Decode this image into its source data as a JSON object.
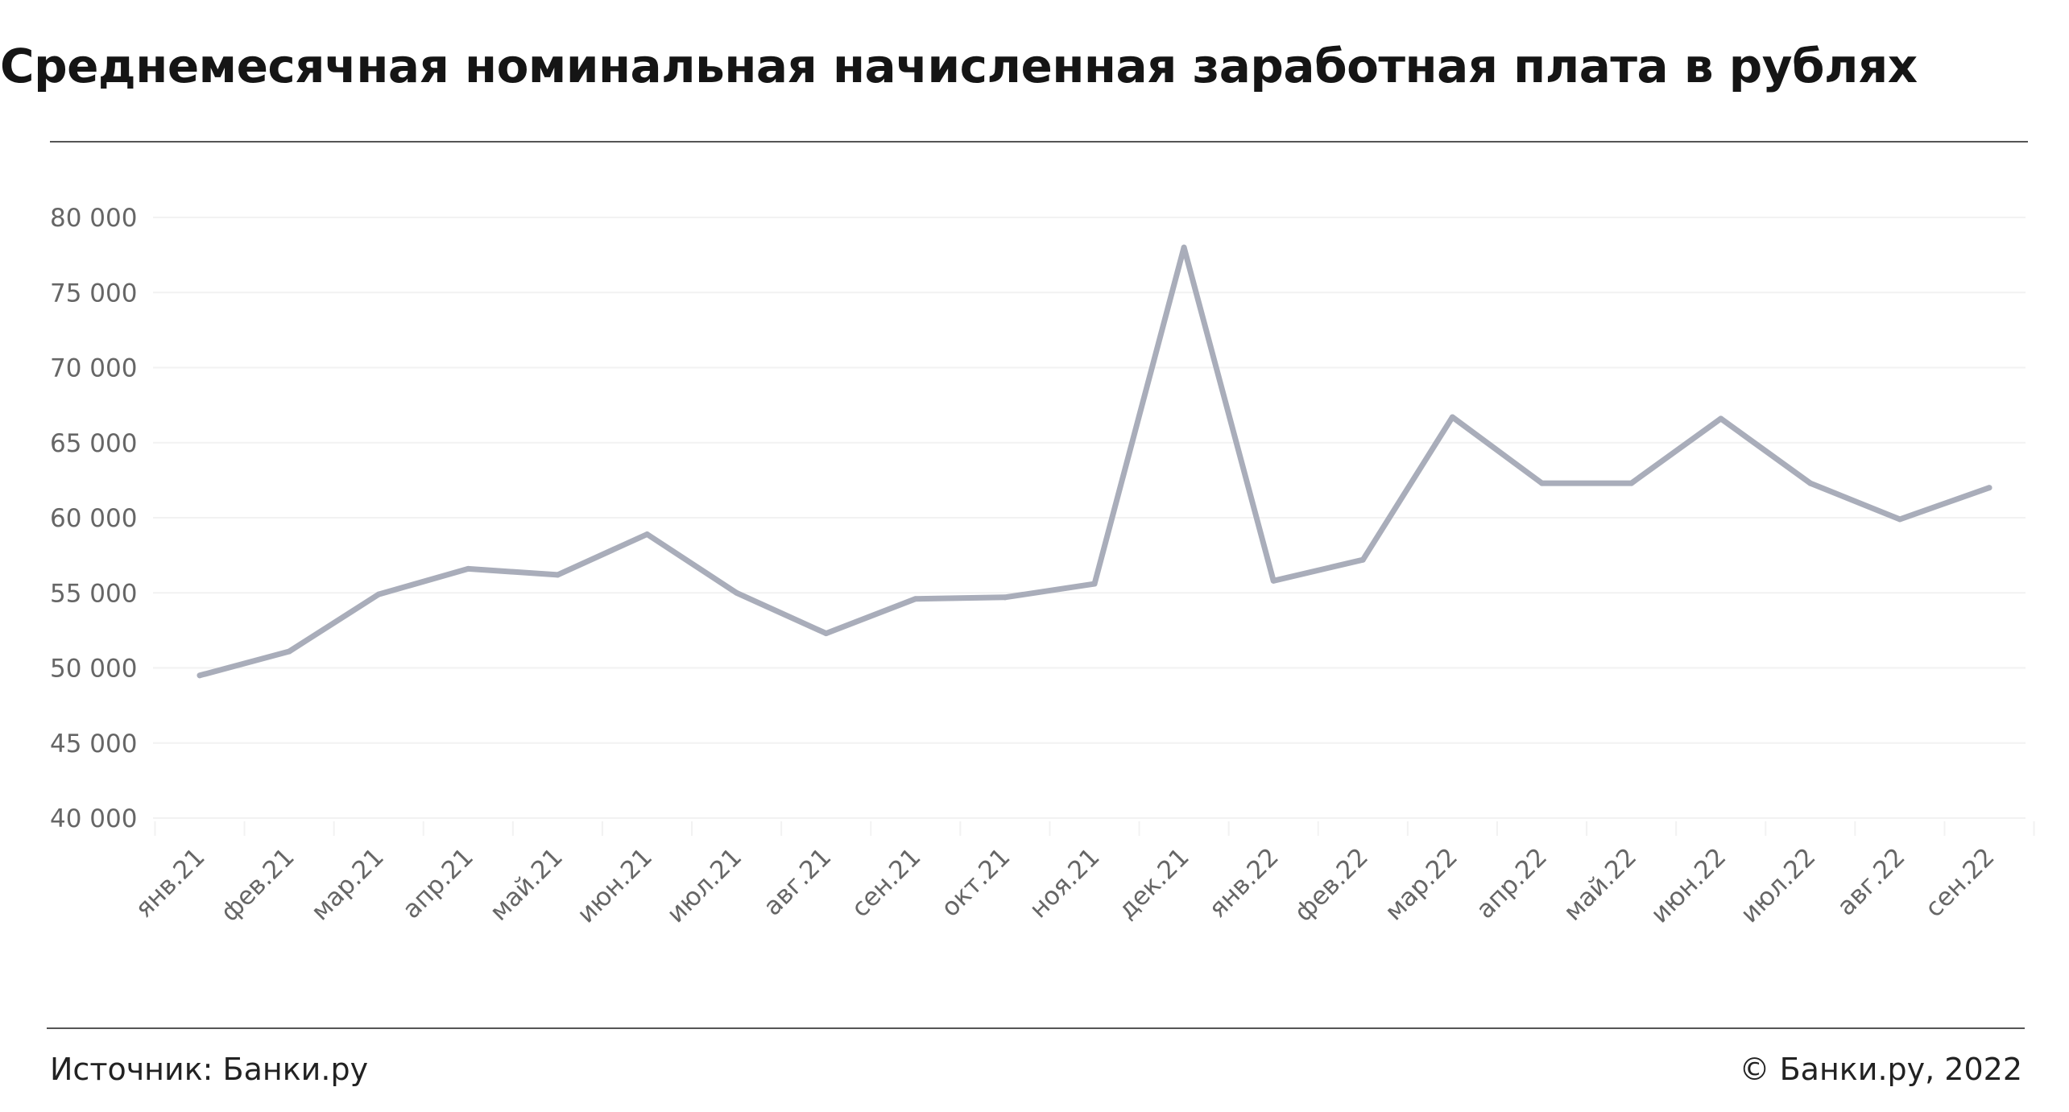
{
  "header": {
    "title": "Среднемесячная номинальная начисленная заработная плата в рублях"
  },
  "footer": {
    "source": "Источник: Банки.ру",
    "copyright": "© Банки.ру, 2022"
  },
  "colors": {
    "line": "#a9adba",
    "grid": "#f2f2f2",
    "tick_text": "#666666",
    "rule": "#555555"
  },
  "chart_data": {
    "type": "line",
    "title": "Среднемесячная номинальная начисленная заработная плата в рублях",
    "xlabel": "",
    "ylabel": "",
    "ylim": [
      40000,
      80000
    ],
    "yticks": [
      40000,
      45000,
      50000,
      55000,
      60000,
      65000,
      70000,
      75000,
      80000
    ],
    "ytick_labels": [
      "40 000",
      "45 000",
      "50 000",
      "55 000",
      "60 000",
      "65 000",
      "70 000",
      "75 000",
      "80 000"
    ],
    "grid": true,
    "legend": "none",
    "categories": [
      "янв.21",
      "фев.21",
      "мар.21",
      "апр.21",
      "май.21",
      "июн.21",
      "июл.21",
      "авг.21",
      "сен.21",
      "окт.21",
      "ноя.21",
      "дек.21",
      "янв.22",
      "фев.22",
      "мар.22",
      "апр.22",
      "май.22",
      "июн.22",
      "июл.22",
      "авг.22",
      "сен.22"
    ],
    "series": [
      {
        "values": [
          49500,
          51100,
          54900,
          56600,
          56200,
          58900,
          55000,
          52300,
          54600,
          54700,
          55600,
          78000,
          55800,
          57200,
          66700,
          62300,
          62300,
          66600,
          62300,
          59900,
          62000
        ]
      }
    ]
  }
}
